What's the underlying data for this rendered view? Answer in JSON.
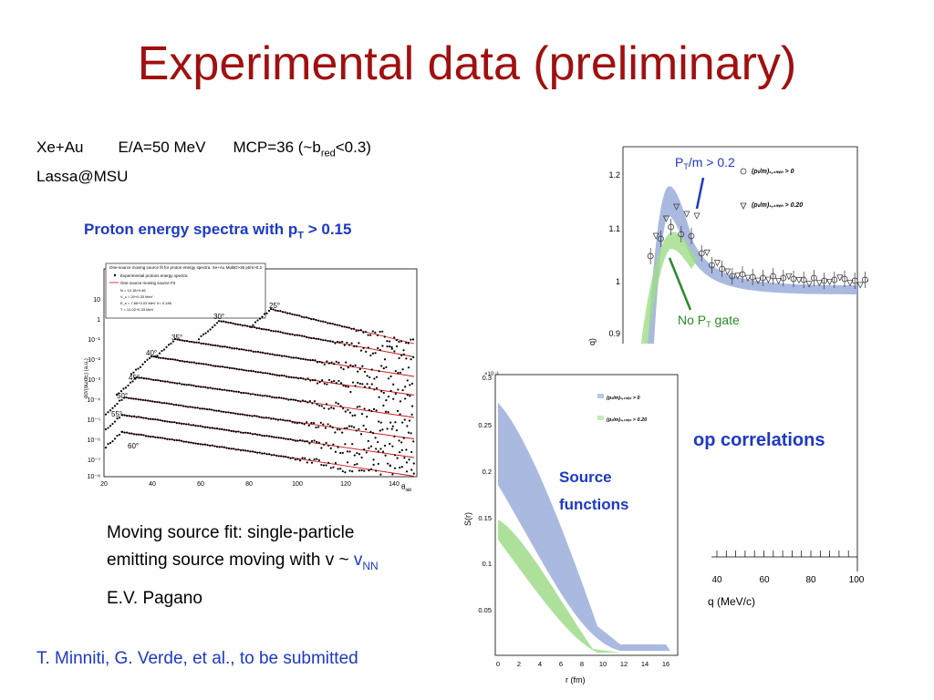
{
  "slide": {
    "title": "Experimental data (preliminary)",
    "system": {
      "reaction": "Xe+Au",
      "energy": "E/A=50 MeV",
      "mcp_prefix": "MCP=36 (~b",
      "mcp_sub": "red",
      "mcp_suffix": "<0.3)",
      "detector": "Lassa@MSU"
    },
    "spectra_label": {
      "text": "Proton energy spectra with p",
      "sub": "T",
      "suffix": " > 0.15"
    },
    "moving_source": {
      "line1": "Moving source fit: single-particle",
      "line2": "emitting source moving with v ~ ",
      "v": "v",
      "v_sub": "NN"
    },
    "author": "E.V. Pagano",
    "reference": "T. Minniti, G. Verde, et al., to be submitted",
    "pp_label": "op correlations",
    "source_label_1": "Source",
    "source_label_2": "functions",
    "pt_label": {
      "pre": "P",
      "sub": "T",
      "post": "/m > 0.2"
    },
    "no_pt_label": {
      "pre": "No P",
      "sub": "T",
      "post": " gate"
    }
  },
  "spectra_plot": {
    "legend": {
      "title": "One-source moving source fit for proton energy spectra. Xe+Au MultiD>36 pt/m>0.2",
      "entry1": "Experimental protons energy spectra",
      "entry2": "One source moving source Fit",
      "params": [
        "N = 13.18+0.46",
        "V_c = 20+0.33 MeV",
        "E_s = 7.66+0.03 MeV V= 0.185",
        "T = 12.02+0.33 MeV"
      ]
    },
    "y_ticks": [
      "10",
      "1",
      "10⁻¹",
      "10⁻²",
      "10⁻³",
      "10⁻⁴",
      "10⁻⁵",
      "10⁻⁶",
      "10⁻⁷",
      "10⁻⁸"
    ],
    "y_label": "dσ/(dωdE) (a.u.)",
    "x_ticks": [
      "20",
      "40",
      "60",
      "80",
      "100",
      "120",
      "140"
    ],
    "x_label": "θ",
    "x_label_sub": "lab",
    "angles": [
      "25°",
      "30°",
      "35°",
      "40°",
      "45°",
      "50°",
      "55°",
      "60°"
    ]
  },
  "correlation_plot": {
    "y_label": "q)",
    "y_ticks": [
      "1.2",
      "1.1",
      "1",
      "0.9"
    ],
    "x_ticks": [
      "40",
      "60",
      "80",
      "100"
    ],
    "x_label": "q  (MeV/c)",
    "legend": {
      "entry1": "(pₜ/m)₁,₂ₘᵢₙ > 0",
      "entry2": "(pₜ/m)₁,₂ₘᵢₙ > 0.20"
    }
  },
  "source_plot": {
    "exponent": "×10⁻³",
    "y_ticks": [
      "0.3",
      "0.25",
      "0.2",
      "0.15",
      "0.1",
      "0.05"
    ],
    "y_label": "S(r)",
    "x_ticks": [
      "0",
      "2",
      "4",
      "6",
      "8",
      "10",
      "12",
      "14",
      "16"
    ],
    "x_label": "r  (fm)",
    "legend": {
      "entry1": "(pₜ/m)₁,₂ₘᵢₙ > 0",
      "entry2": "(pₜ/m)₁,₂ₘᵢₙ > 0.20"
    }
  },
  "colors": {
    "title": "#a01010",
    "accent_blue": "#1d39c4",
    "accent_green": "#2a8a2a",
    "band_blue": "#8da2d6",
    "band_green": "#9fdc8a",
    "fit_red": "#cc1111"
  }
}
